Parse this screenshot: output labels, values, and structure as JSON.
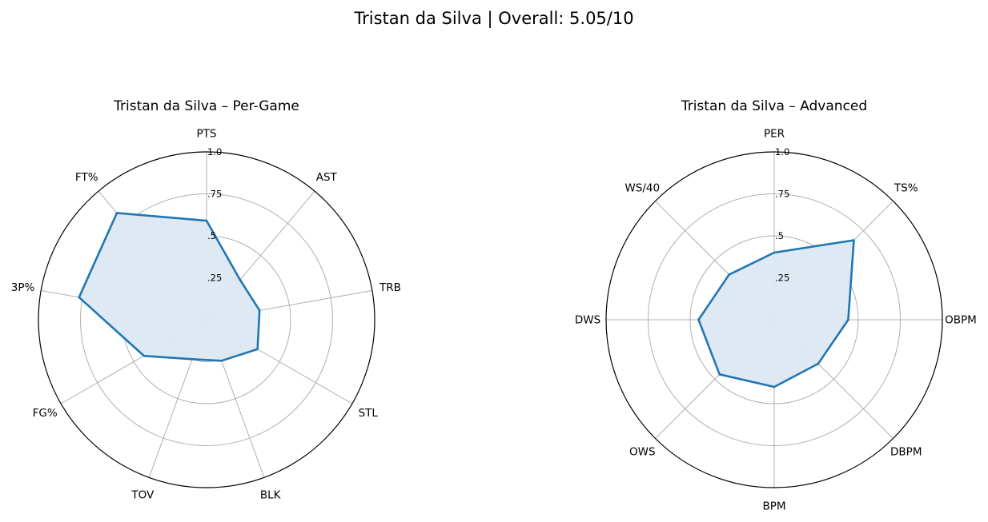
{
  "figure_title": "Tristan da Silva | Overall: 5.05/10",
  "colors": {
    "series": "#1f77b4",
    "fill": "#dde8f3",
    "grid": "#b0b0b0",
    "frame": "#000000"
  },
  "chart_data": [
    {
      "type": "radar",
      "title": "Tristan da Silva – Per-Game",
      "axes": [
        "PTS",
        "AST",
        "TRB",
        "STL",
        "BLK",
        "TOV",
        "FG%",
        "3P%",
        "FT%"
      ],
      "rlim": [
        0,
        1
      ],
      "rticks": [
        0.25,
        0.5,
        0.75,
        1.0
      ],
      "rtick_labels": [
        ".25",
        ".5",
        ".75",
        "1.0"
      ],
      "grid": true,
      "series": [
        {
          "values": [
            0.59,
            0.31,
            0.32,
            0.35,
            0.26,
            0.25,
            0.43,
            0.77,
            0.83
          ]
        }
      ]
    },
    {
      "type": "radar",
      "title": "Tristan da Silva – Advanced",
      "axes": [
        "PER",
        "TS%",
        "OBPM",
        "DBPM",
        "BPM",
        "OWS",
        "DWS",
        "WS/40"
      ],
      "rlim": [
        0,
        1
      ],
      "rticks": [
        0.25,
        0.5,
        0.75,
        1.0
      ],
      "rtick_labels": [
        ".25",
        ".5",
        ".75",
        "1.0"
      ],
      "grid": true,
      "series": [
        {
          "values": [
            0.4,
            0.67,
            0.44,
            0.37,
            0.4,
            0.46,
            0.45,
            0.38
          ]
        }
      ]
    }
  ]
}
